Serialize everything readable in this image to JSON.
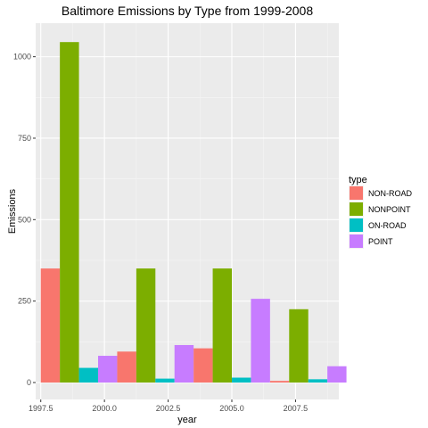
{
  "chart_data": {
    "type": "bar",
    "title": "Baltimore Emissions by Type from 1999-2008",
    "xlabel": "year",
    "ylabel": "Emissions",
    "xlim": [
      1997.3,
      2009.2
    ],
    "ylim": [
      -52,
      1103
    ],
    "x_ticks": [
      1997.5,
      2000.0,
      2002.5,
      2005.0,
      2007.5
    ],
    "x_tick_labels": [
      "1997.5",
      "2000.0",
      "2002.5",
      "2005.0",
      "2007.5"
    ],
    "y_ticks": [
      0,
      250,
      500,
      750,
      1000
    ],
    "y_tick_labels": [
      "0",
      "250",
      "500",
      "750",
      "1000"
    ],
    "categories": [
      1999,
      2002,
      2005,
      2008
    ],
    "bar_group_width": 3,
    "grid": true,
    "legend": {
      "title": "type",
      "position": "right"
    },
    "series": [
      {
        "name": "NON-ROAD",
        "color": "#F8766D",
        "values": [
          350,
          95,
          105,
          5
        ]
      },
      {
        "name": "NONPOINT",
        "color": "#7CAE00",
        "values": [
          1045,
          350,
          350,
          225
        ]
      },
      {
        "name": "ON-ROAD",
        "color": "#00BFC4",
        "values": [
          45,
          12,
          15,
          10
        ]
      },
      {
        "name": "POINT",
        "color": "#C77CFF",
        "values": [
          82,
          115,
          257,
          50
        ]
      }
    ]
  }
}
